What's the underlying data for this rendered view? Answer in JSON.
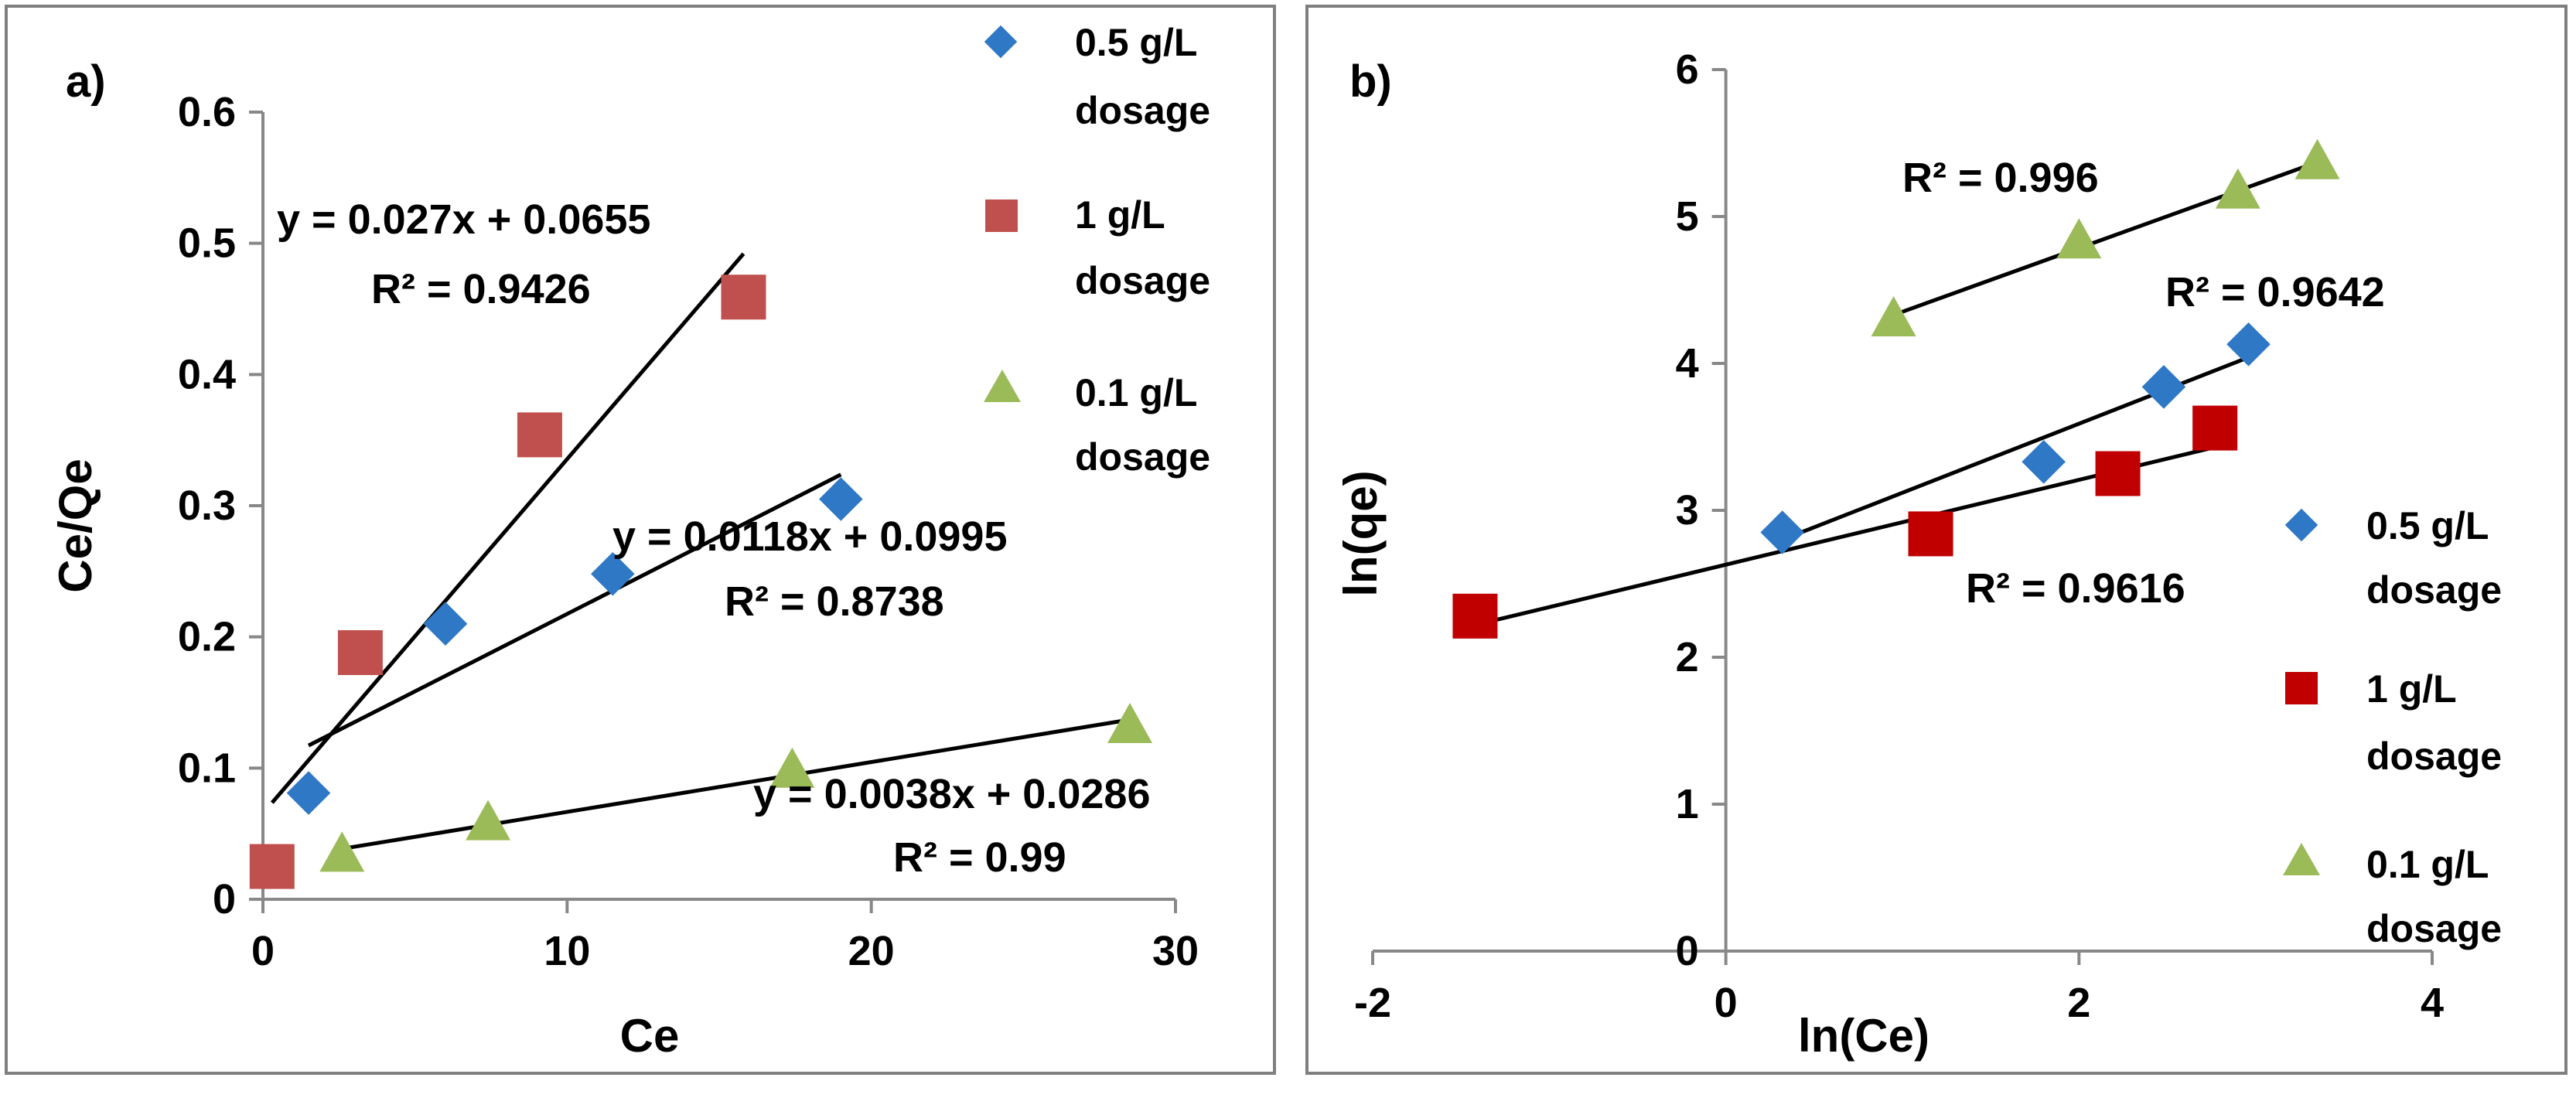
{
  "colors": {
    "series_0_5": "#2e78c5",
    "series_1_a": "#c0504d",
    "series_1_b": "#c00000",
    "series_0_1": "#9bbb59",
    "trendline": "#000000",
    "axis": "#888888"
  },
  "chart_data": [
    {
      "panel_label": "a)",
      "type": "scatter",
      "xlabel": "Ce",
      "ylabel": "Ce/Qe",
      "xlim": [
        0,
        30
      ],
      "ylim": [
        0,
        0.6
      ],
      "xticks": [
        0,
        10,
        20,
        30
      ],
      "yticks": [
        0,
        0.1,
        0.2,
        0.3,
        0.4,
        0.5,
        0.6
      ],
      "xtick_labels": [
        "0",
        "10",
        "20",
        "30"
      ],
      "ytick_labels": [
        "0",
        "0.1",
        "0.2",
        "0.3",
        "0.4",
        "0.5",
        "0.6"
      ],
      "legend": "right",
      "series": [
        {
          "name": "0.5 g/L dosage",
          "legend_lines": [
            "0.5 g/L",
            "dosage"
          ],
          "marker": "diamond",
          "color": "#2e78c5",
          "x": [
            1.5,
            6.0,
            11.5,
            19.0
          ],
          "y": [
            0.081,
            0.21,
            0.248,
            0.305
          ]
        },
        {
          "name": "1 g/L dosage",
          "legend_lines": [
            "1 g/L",
            "dosage"
          ],
          "marker": "square",
          "color": "#c0504d",
          "x": [
            0.3,
            3.2,
            9.1,
            15.8
          ],
          "y": [
            0.025,
            0.188,
            0.354,
            0.459
          ]
        },
        {
          "name": "0.1 g/L dosage",
          "legend_lines": [
            "0.1 g/L",
            "dosage"
          ],
          "marker": "triangle",
          "color": "#9bbb59",
          "x": [
            2.6,
            7.4,
            17.4,
            28.5
          ],
          "y": [
            0.034,
            0.058,
            0.098,
            0.132
          ]
        }
      ],
      "trendlines": [
        {
          "for": "1 g/L dosage",
          "slope": 0.027,
          "intercept": 0.0655,
          "x_range": [
            0.3,
            15.8
          ]
        },
        {
          "for": "0.5 g/L dosage",
          "slope": 0.0118,
          "intercept": 0.0995,
          "x_range": [
            1.5,
            19.0
          ]
        },
        {
          "for": "0.1 g/L dosage",
          "slope": 0.0038,
          "intercept": 0.0286,
          "x_range": [
            2.6,
            28.5
          ]
        }
      ],
      "annotations": [
        {
          "text": "y = 0.027x + 0.0655"
        },
        {
          "text": "R² = 0.9426"
        },
        {
          "text": "y = 0.0118x + 0.0995"
        },
        {
          "text": "R² = 0.8738"
        },
        {
          "text": "y = 0.0038x + 0.0286"
        },
        {
          "text": "R² = 0.99"
        }
      ]
    },
    {
      "panel_label": "b)",
      "type": "scatter",
      "xlabel": "ln(Ce)",
      "ylabel": "ln(qe)",
      "xlim": [
        -2,
        4
      ],
      "ylim": [
        0,
        6
      ],
      "xticks": [
        -2,
        0,
        2,
        4
      ],
      "yticks": [
        0,
        1,
        2,
        3,
        4,
        5,
        6
      ],
      "xtick_labels": [
        "-2",
        "0",
        "2",
        "4"
      ],
      "ytick_labels": [
        "0",
        "1",
        "2",
        "3",
        "4",
        "5",
        "6"
      ],
      "legend": "right",
      "series": [
        {
          "name": "0.5 g/L dosage",
          "legend_lines": [
            "0.5 g/L",
            "dosage"
          ],
          "marker": "diamond",
          "color": "#2e78c5",
          "x": [
            0.32,
            1.8,
            2.48,
            2.96
          ],
          "y": [
            2.85,
            3.33,
            3.84,
            4.13
          ]
        },
        {
          "name": "1 g/L dosage",
          "legend_lines": [
            "1 g/L",
            "dosage"
          ],
          "marker": "square",
          "color": "#c00000",
          "x": [
            -1.42,
            1.16,
            2.22,
            2.77
          ],
          "y": [
            2.28,
            2.84,
            3.25,
            3.56
          ]
        },
        {
          "name": "0.1 g/L dosage",
          "legend_lines": [
            "0.1 g/L",
            "dosage"
          ],
          "marker": "triangle",
          "color": "#9bbb59",
          "x": [
            0.95,
            2.0,
            2.9,
            3.35
          ],
          "y": [
            4.3,
            4.83,
            5.17,
            5.37
          ]
        }
      ],
      "trendlines": [
        {
          "for": "0.1 g/L dosage",
          "points": [
            [
              0.95,
              4.33
            ],
            [
              3.35,
              5.37
            ]
          ]
        },
        {
          "for": "0.5 g/L dosage",
          "points": [
            [
              0.32,
              2.8
            ],
            [
              3.0,
              4.06
            ]
          ]
        },
        {
          "for": "1 g/L dosage",
          "points": [
            [
              -1.42,
              2.22
            ],
            [
              2.77,
              3.43
            ]
          ]
        }
      ],
      "annotations": [
        {
          "text": "R² = 0.996"
        },
        {
          "text": "R² = 0.9642"
        },
        {
          "text": "R² = 0.9616"
        }
      ]
    }
  ]
}
